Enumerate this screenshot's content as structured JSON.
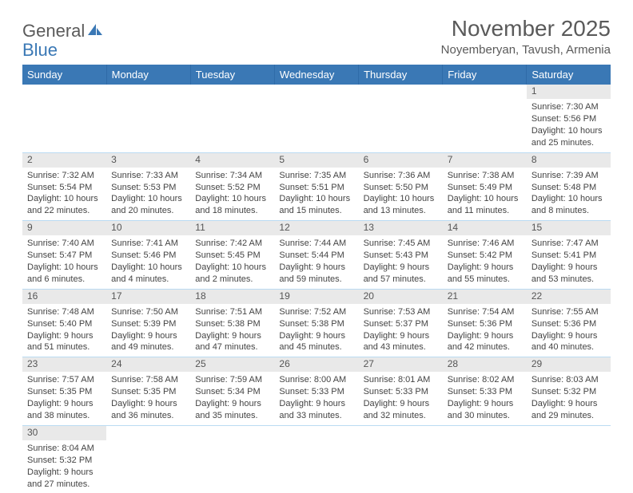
{
  "brand": {
    "part1": "General",
    "part2": "Blue"
  },
  "colors": {
    "header_bg": "#3a78b5",
    "header_text": "#ffffff",
    "grid_line": "#badbf2",
    "daynum_bg": "#e9e9e9",
    "body_text": "#444444",
    "title_text": "#5a5a5a"
  },
  "title": "November 2025",
  "location": "Noyemberyan, Tavush, Armenia",
  "dow": [
    "Sunday",
    "Monday",
    "Tuesday",
    "Wednesday",
    "Thursday",
    "Friday",
    "Saturday"
  ],
  "weeks": [
    [
      null,
      null,
      null,
      null,
      null,
      null,
      {
        "d": "1",
        "sr": "Sunrise: 7:30 AM",
        "ss": "Sunset: 5:56 PM",
        "dl": "Daylight: 10 hours and 25 minutes."
      }
    ],
    [
      {
        "d": "2",
        "sr": "Sunrise: 7:32 AM",
        "ss": "Sunset: 5:54 PM",
        "dl": "Daylight: 10 hours and 22 minutes."
      },
      {
        "d": "3",
        "sr": "Sunrise: 7:33 AM",
        "ss": "Sunset: 5:53 PM",
        "dl": "Daylight: 10 hours and 20 minutes."
      },
      {
        "d": "4",
        "sr": "Sunrise: 7:34 AM",
        "ss": "Sunset: 5:52 PM",
        "dl": "Daylight: 10 hours and 18 minutes."
      },
      {
        "d": "5",
        "sr": "Sunrise: 7:35 AM",
        "ss": "Sunset: 5:51 PM",
        "dl": "Daylight: 10 hours and 15 minutes."
      },
      {
        "d": "6",
        "sr": "Sunrise: 7:36 AM",
        "ss": "Sunset: 5:50 PM",
        "dl": "Daylight: 10 hours and 13 minutes."
      },
      {
        "d": "7",
        "sr": "Sunrise: 7:38 AM",
        "ss": "Sunset: 5:49 PM",
        "dl": "Daylight: 10 hours and 11 minutes."
      },
      {
        "d": "8",
        "sr": "Sunrise: 7:39 AM",
        "ss": "Sunset: 5:48 PM",
        "dl": "Daylight: 10 hours and 8 minutes."
      }
    ],
    [
      {
        "d": "9",
        "sr": "Sunrise: 7:40 AM",
        "ss": "Sunset: 5:47 PM",
        "dl": "Daylight: 10 hours and 6 minutes."
      },
      {
        "d": "10",
        "sr": "Sunrise: 7:41 AM",
        "ss": "Sunset: 5:46 PM",
        "dl": "Daylight: 10 hours and 4 minutes."
      },
      {
        "d": "11",
        "sr": "Sunrise: 7:42 AM",
        "ss": "Sunset: 5:45 PM",
        "dl": "Daylight: 10 hours and 2 minutes."
      },
      {
        "d": "12",
        "sr": "Sunrise: 7:44 AM",
        "ss": "Sunset: 5:44 PM",
        "dl": "Daylight: 9 hours and 59 minutes."
      },
      {
        "d": "13",
        "sr": "Sunrise: 7:45 AM",
        "ss": "Sunset: 5:43 PM",
        "dl": "Daylight: 9 hours and 57 minutes."
      },
      {
        "d": "14",
        "sr": "Sunrise: 7:46 AM",
        "ss": "Sunset: 5:42 PM",
        "dl": "Daylight: 9 hours and 55 minutes."
      },
      {
        "d": "15",
        "sr": "Sunrise: 7:47 AM",
        "ss": "Sunset: 5:41 PM",
        "dl": "Daylight: 9 hours and 53 minutes."
      }
    ],
    [
      {
        "d": "16",
        "sr": "Sunrise: 7:48 AM",
        "ss": "Sunset: 5:40 PM",
        "dl": "Daylight: 9 hours and 51 minutes."
      },
      {
        "d": "17",
        "sr": "Sunrise: 7:50 AM",
        "ss": "Sunset: 5:39 PM",
        "dl": "Daylight: 9 hours and 49 minutes."
      },
      {
        "d": "18",
        "sr": "Sunrise: 7:51 AM",
        "ss": "Sunset: 5:38 PM",
        "dl": "Daylight: 9 hours and 47 minutes."
      },
      {
        "d": "19",
        "sr": "Sunrise: 7:52 AM",
        "ss": "Sunset: 5:38 PM",
        "dl": "Daylight: 9 hours and 45 minutes."
      },
      {
        "d": "20",
        "sr": "Sunrise: 7:53 AM",
        "ss": "Sunset: 5:37 PM",
        "dl": "Daylight: 9 hours and 43 minutes."
      },
      {
        "d": "21",
        "sr": "Sunrise: 7:54 AM",
        "ss": "Sunset: 5:36 PM",
        "dl": "Daylight: 9 hours and 42 minutes."
      },
      {
        "d": "22",
        "sr": "Sunrise: 7:55 AM",
        "ss": "Sunset: 5:36 PM",
        "dl": "Daylight: 9 hours and 40 minutes."
      }
    ],
    [
      {
        "d": "23",
        "sr": "Sunrise: 7:57 AM",
        "ss": "Sunset: 5:35 PM",
        "dl": "Daylight: 9 hours and 38 minutes."
      },
      {
        "d": "24",
        "sr": "Sunrise: 7:58 AM",
        "ss": "Sunset: 5:35 PM",
        "dl": "Daylight: 9 hours and 36 minutes."
      },
      {
        "d": "25",
        "sr": "Sunrise: 7:59 AM",
        "ss": "Sunset: 5:34 PM",
        "dl": "Daylight: 9 hours and 35 minutes."
      },
      {
        "d": "26",
        "sr": "Sunrise: 8:00 AM",
        "ss": "Sunset: 5:33 PM",
        "dl": "Daylight: 9 hours and 33 minutes."
      },
      {
        "d": "27",
        "sr": "Sunrise: 8:01 AM",
        "ss": "Sunset: 5:33 PM",
        "dl": "Daylight: 9 hours and 32 minutes."
      },
      {
        "d": "28",
        "sr": "Sunrise: 8:02 AM",
        "ss": "Sunset: 5:33 PM",
        "dl": "Daylight: 9 hours and 30 minutes."
      },
      {
        "d": "29",
        "sr": "Sunrise: 8:03 AM",
        "ss": "Sunset: 5:32 PM",
        "dl": "Daylight: 9 hours and 29 minutes."
      }
    ],
    [
      {
        "d": "30",
        "sr": "Sunrise: 8:04 AM",
        "ss": "Sunset: 5:32 PM",
        "dl": "Daylight: 9 hours and 27 minutes."
      },
      null,
      null,
      null,
      null,
      null,
      null
    ]
  ]
}
